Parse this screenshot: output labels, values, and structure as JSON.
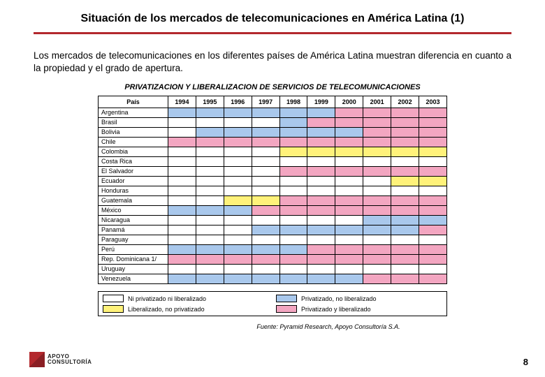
{
  "colors": {
    "none": "#ffffff",
    "lib": "#fff27a",
    "priv": "#a9c8ec",
    "both": "#f3a6c1",
    "rule": "#b3282d"
  },
  "title": "Situación de los mercados de telecomunicaciones en América Latina (1)",
  "intro": "Los mercados de telecomunicaciones en los diferentes países de América Latina muestran diferencia en cuanto a la propiedad y el grado de apertura.",
  "chart": {
    "title": "PRIVATIZACION Y LIBERALIZACION DE SERVICIOS DE TELECOMUNICACIONES",
    "header_country": "País",
    "years": [
      "1994",
      "1995",
      "1996",
      "1997",
      "1998",
      "1999",
      "2000",
      "2001",
      "2002",
      "2003"
    ],
    "rows": [
      {
        "name": "Argentina",
        "cells": [
          "priv",
          "priv",
          "priv",
          "priv",
          "priv",
          "priv",
          "both",
          "both",
          "both",
          "both"
        ]
      },
      {
        "name": "Brasil",
        "cells": [
          "none",
          "none",
          "none",
          "none",
          "priv",
          "both",
          "both",
          "both",
          "both",
          "both"
        ]
      },
      {
        "name": "Bolivia",
        "cells": [
          "none",
          "priv",
          "priv",
          "priv",
          "priv",
          "priv",
          "priv",
          "both",
          "both",
          "both"
        ]
      },
      {
        "name": "Chile",
        "cells": [
          "both",
          "both",
          "both",
          "both",
          "both",
          "both",
          "both",
          "both",
          "both",
          "both"
        ]
      },
      {
        "name": "Colombia",
        "cells": [
          "none",
          "none",
          "none",
          "none",
          "lib",
          "lib",
          "lib",
          "lib",
          "lib",
          "lib"
        ]
      },
      {
        "name": "Costa Rica",
        "cells": [
          "none",
          "none",
          "none",
          "none",
          "none",
          "none",
          "none",
          "none",
          "none",
          "none"
        ]
      },
      {
        "name": "El Salvador",
        "cells": [
          "none",
          "none",
          "none",
          "none",
          "both",
          "both",
          "both",
          "both",
          "both",
          "both"
        ]
      },
      {
        "name": "Ecuador",
        "cells": [
          "none",
          "none",
          "none",
          "none",
          "none",
          "none",
          "none",
          "none",
          "lib",
          "lib"
        ]
      },
      {
        "name": "Honduras",
        "cells": [
          "none",
          "none",
          "none",
          "none",
          "none",
          "none",
          "none",
          "none",
          "none",
          "none"
        ]
      },
      {
        "name": "Guatemala",
        "cells": [
          "none",
          "none",
          "lib",
          "lib",
          "both",
          "both",
          "both",
          "both",
          "both",
          "both"
        ]
      },
      {
        "name": "México",
        "cells": [
          "priv",
          "priv",
          "priv",
          "both",
          "both",
          "both",
          "both",
          "both",
          "both",
          "both"
        ]
      },
      {
        "name": "Nicaragua",
        "cells": [
          "none",
          "none",
          "none",
          "none",
          "none",
          "none",
          "none",
          "priv",
          "priv",
          "priv"
        ]
      },
      {
        "name": "Panamá",
        "cells": [
          "none",
          "none",
          "none",
          "priv",
          "priv",
          "priv",
          "priv",
          "priv",
          "priv",
          "both"
        ]
      },
      {
        "name": "Paraguay",
        "cells": [
          "none",
          "none",
          "none",
          "none",
          "none",
          "none",
          "none",
          "none",
          "none",
          "none"
        ]
      },
      {
        "name": "Perú",
        "cells": [
          "priv",
          "priv",
          "priv",
          "priv",
          "priv",
          "both",
          "both",
          "both",
          "both",
          "both"
        ]
      },
      {
        "name": "Rep. Dominicana 1/",
        "cells": [
          "both",
          "both",
          "both",
          "both",
          "both",
          "both",
          "both",
          "both",
          "both",
          "both"
        ]
      },
      {
        "name": "Uruguay",
        "cells": [
          "none",
          "none",
          "none",
          "none",
          "none",
          "none",
          "none",
          "none",
          "none",
          "none"
        ]
      },
      {
        "name": "Venezuela",
        "cells": [
          "priv",
          "priv",
          "priv",
          "priv",
          "priv",
          "priv",
          "priv",
          "both",
          "both",
          "both"
        ]
      }
    ],
    "legend": [
      {
        "key": "none",
        "label": "Ni privatizado ni liberalizado"
      },
      {
        "key": "priv",
        "label": "Privatizado, no liberalizado"
      },
      {
        "key": "lib",
        "label": "Liberalizado, no privatizado"
      },
      {
        "key": "both",
        "label": "Privatizado y liberalizado"
      }
    ]
  },
  "source": "Fuente: Pyramid Research, Apoyo Consultoría S.A.",
  "logo": {
    "line1": "APOYO",
    "line2": "CONSULTORÍA"
  },
  "page_number": "8"
}
